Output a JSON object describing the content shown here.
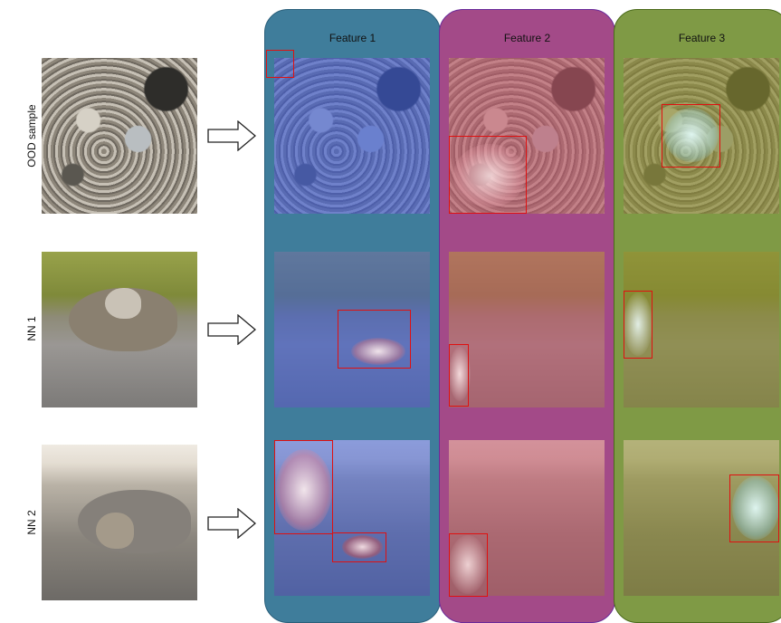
{
  "rows": [
    {
      "label": "OOD sample"
    },
    {
      "label": "NN 1"
    },
    {
      "label": "NN 2"
    }
  ],
  "features": [
    {
      "title": "Feature 1",
      "color": "#3f7d9b",
      "tint": "#3a5bd6"
    },
    {
      "title": "Feature 2",
      "color": "#a34a88",
      "tint": "#c2566a"
    },
    {
      "title": "Feature 3",
      "color": "#7f9a45",
      "tint": "#8a8a2f"
    }
  ],
  "colors": {
    "box": "#e01010",
    "panel_border_1": "#2a5f7a",
    "panel_border_2": "#6a2a9a",
    "panel_border_3": "#4a6a1a"
  },
  "icons": {
    "arrow": "right-outline-arrow-icon"
  }
}
